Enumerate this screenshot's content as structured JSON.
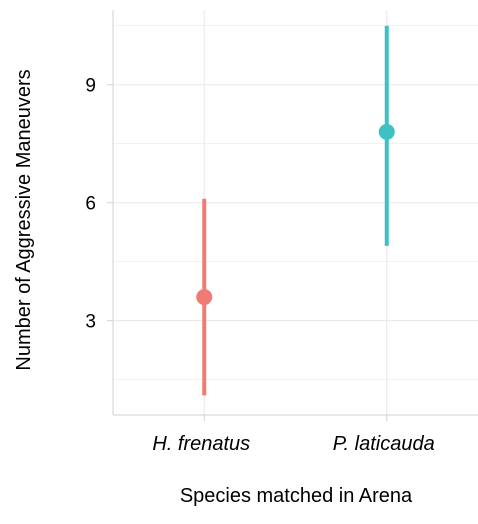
{
  "chart_data": {
    "type": "scatter",
    "title": "",
    "xlabel": "Species matched in Arena",
    "ylabel": "Number of Aggressive Maneuvers",
    "categories": [
      "H. frenatus",
      "P. laticauda"
    ],
    "points": [
      {
        "category": "H. frenatus",
        "mean": 3.6,
        "lower": 1.1,
        "upper": 6.1,
        "color": "#ee7b74"
      },
      {
        "category": "P. laticauda",
        "mean": 7.8,
        "lower": 4.9,
        "upper": 10.5,
        "color": "#3ec1c3"
      }
    ],
    "yticks": [
      3,
      6,
      9
    ],
    "ylim": [
      0.6,
      10.9
    ],
    "grid": true,
    "legend": "none",
    "colors": {
      "panel_background": "#ffffff",
      "gridline": "#ebebeb",
      "axis_line": "#d9d9d9"
    }
  }
}
